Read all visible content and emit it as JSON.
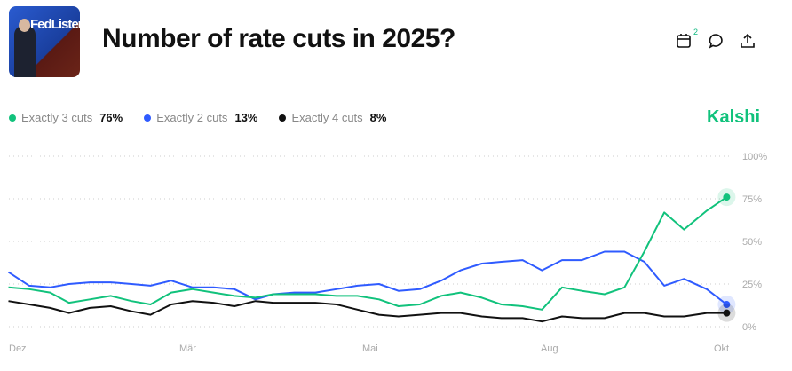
{
  "header": {
    "title": "Number of rate cuts in 2025?",
    "thumbnail_text": "FedListens",
    "calendar_badge": "2",
    "icons": [
      "calendar-icon",
      "comment-icon",
      "share-icon"
    ]
  },
  "brand": "Kalshi",
  "legend": [
    {
      "label": "Exactly 3 cuts",
      "value": "76%",
      "color": "#11c27c"
    },
    {
      "label": "Exactly 2 cuts",
      "value": "13%",
      "color": "#2f5bff"
    },
    {
      "label": "Exactly 4 cuts",
      "value": "8%",
      "color": "#111111"
    }
  ],
  "chart_data": {
    "type": "line",
    "ylim": [
      0,
      100
    ],
    "yticks": [
      "0%",
      "25%",
      "50%",
      "75%",
      "100%"
    ],
    "ytick_values": [
      0,
      25,
      50,
      75,
      100
    ],
    "grid": true,
    "xticks": [
      {
        "label": "Dez",
        "date": "2024-12-01"
      },
      {
        "label": "Mär",
        "date": "2025-03-01"
      },
      {
        "label": "Mai",
        "date": "2025-05-01"
      },
      {
        "label": "Aug",
        "date": "2025-08-01"
      },
      {
        "label": "Okt",
        "date": "2025-10-01"
      }
    ],
    "x": [
      "2024-11-27",
      "2024-12-08",
      "2024-12-19",
      "2024-12-29",
      "2025-01-09",
      "2025-01-20",
      "2025-01-31",
      "2025-02-10",
      "2025-02-21",
      "2025-03-03",
      "2025-03-10",
      "2025-03-17",
      "2025-03-24",
      "2025-03-30",
      "2025-04-06",
      "2025-04-13",
      "2025-04-20",
      "2025-04-27",
      "2025-05-06",
      "2025-05-16",
      "2025-05-27",
      "2025-06-07",
      "2025-06-17",
      "2025-06-28",
      "2025-07-08",
      "2025-07-19",
      "2025-07-29",
      "2025-08-06",
      "2025-08-13",
      "2025-08-21",
      "2025-08-28",
      "2025-09-04",
      "2025-09-11",
      "2025-09-18",
      "2025-09-26",
      "2025-10-03"
    ],
    "series": [
      {
        "name": "Exactly 3 cuts",
        "color": "#11c27c",
        "values": [
          23,
          22,
          20,
          14,
          16,
          18,
          15,
          13,
          20,
          22,
          20,
          18,
          17,
          19,
          19,
          19,
          18,
          18,
          16,
          12,
          13,
          18,
          20,
          17,
          13,
          12,
          10,
          23,
          21,
          19,
          23,
          44,
          67,
          57,
          68,
          76
        ]
      },
      {
        "name": "Exactly 2 cuts",
        "color": "#2f5bff",
        "values": [
          32,
          24,
          23,
          25,
          26,
          26,
          25,
          24,
          27,
          23,
          23,
          22,
          16,
          19,
          20,
          20,
          22,
          24,
          25,
          21,
          22,
          27,
          33,
          37,
          38,
          39,
          33,
          39,
          39,
          44,
          44,
          38,
          24,
          28,
          22,
          13
        ]
      },
      {
        "name": "Exactly 4 cuts",
        "color": "#111111",
        "values": [
          15,
          13,
          11,
          8,
          11,
          12,
          9,
          7,
          13,
          15,
          14,
          12,
          15,
          14,
          14,
          14,
          13,
          10,
          7,
          6,
          7,
          8,
          8,
          6,
          5,
          5,
          3,
          6,
          5,
          5,
          8,
          8,
          6,
          6,
          8,
          8
        ]
      }
    ]
  }
}
